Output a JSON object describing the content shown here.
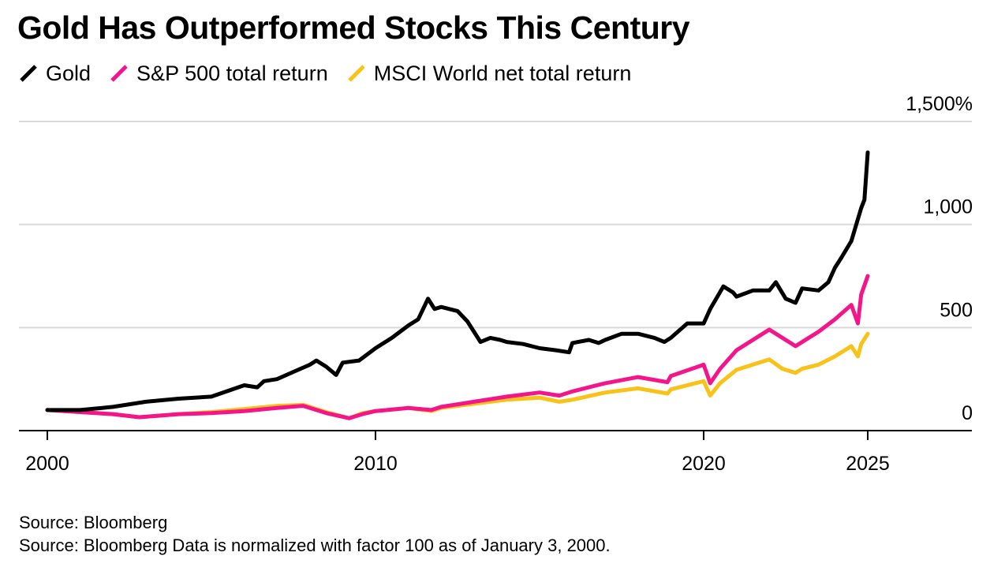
{
  "chart_data": {
    "type": "line",
    "title": "Gold Has Outperformed Stocks This Century",
    "xlabel": "",
    "ylabel": "",
    "x_ticks": [
      "2000",
      "2010",
      "2020",
      "2025"
    ],
    "y_ticks": [
      "0",
      "500",
      "1,000",
      "1,500%"
    ],
    "xlim": [
      2000,
      2028.3
    ],
    "ylim": [
      0,
      1500
    ],
    "grid": true,
    "legend_position": "top-left",
    "series": [
      {
        "name": "Gold",
        "color": "#000000",
        "x": [
          2000.0,
          2001.0,
          2002.0,
          2003.0,
          2004.0,
          2005.0,
          2006.0,
          2006.4,
          2006.6,
          2007.0,
          2007.5,
          2008.0,
          2008.2,
          2008.5,
          2008.8,
          2009.0,
          2009.5,
          2010.0,
          2010.5,
          2011.0,
          2011.3,
          2011.6,
          2011.8,
          2012.0,
          2012.5,
          2012.8,
          2013.2,
          2013.5,
          2013.8,
          2014.0,
          2014.5,
          2015.0,
          2015.5,
          2015.9,
          2016.0,
          2016.5,
          2016.8,
          2017.0,
          2017.5,
          2018.0,
          2018.5,
          2018.8,
          2019.0,
          2019.5,
          2020.0,
          2020.2,
          2020.6,
          2020.9,
          2021.0,
          2021.5,
          2022.0,
          2022.2,
          2022.5,
          2022.8,
          2023.0,
          2023.5,
          2023.8,
          2024.0,
          2024.2,
          2024.5,
          2024.8,
          2024.9,
          2025.0
        ],
        "values": [
          100,
          100,
          115,
          140,
          155,
          165,
          220,
          210,
          240,
          250,
          285,
          320,
          340,
          310,
          270,
          330,
          340,
          400,
          450,
          510,
          540,
          640,
          590,
          600,
          580,
          530,
          430,
          450,
          440,
          430,
          420,
          400,
          390,
          380,
          425,
          440,
          425,
          440,
          470,
          470,
          450,
          430,
          450,
          520,
          520,
          590,
          700,
          670,
          650,
          680,
          680,
          720,
          640,
          620,
          690,
          680,
          720,
          790,
          840,
          920,
          1080,
          1120,
          1350
        ]
      },
      {
        "name": "S&P 500 total return",
        "color": "#F5158B",
        "x": [
          2000.0,
          2001.0,
          2002.0,
          2002.8,
          2004.0,
          2005.0,
          2006.0,
          2007.0,
          2007.8,
          2008.5,
          2009.2,
          2009.6,
          2010.0,
          2011.0,
          2011.7,
          2012.0,
          2013.0,
          2014.0,
          2015.0,
          2015.6,
          2016.0,
          2017.0,
          2018.0,
          2018.9,
          2019.0,
          2020.0,
          2020.2,
          2020.5,
          2021.0,
          2022.0,
          2022.4,
          2022.8,
          2023.0,
          2023.5,
          2024.0,
          2024.5,
          2024.7,
          2024.8,
          2025.0
        ],
        "values": [
          100,
          90,
          80,
          65,
          80,
          85,
          95,
          110,
          120,
          85,
          60,
          80,
          95,
          110,
          100,
          115,
          140,
          165,
          185,
          170,
          190,
          230,
          260,
          235,
          265,
          320,
          230,
          300,
          390,
          490,
          450,
          410,
          430,
          480,
          540,
          610,
          520,
          660,
          750
        ]
      },
      {
        "name": "MSCI World net total return",
        "color": "#F9C219",
        "x": [
          2000.0,
          2001.0,
          2002.0,
          2002.8,
          2004.0,
          2005.0,
          2006.0,
          2007.0,
          2007.8,
          2008.5,
          2009.2,
          2009.6,
          2010.0,
          2011.0,
          2011.7,
          2012.0,
          2013.0,
          2014.0,
          2015.0,
          2015.6,
          2016.0,
          2017.0,
          2018.0,
          2018.9,
          2019.0,
          2020.0,
          2020.2,
          2020.5,
          2021.0,
          2022.0,
          2022.4,
          2022.8,
          2023.0,
          2023.5,
          2024.0,
          2024.5,
          2024.7,
          2024.8,
          2025.0
        ],
        "values": [
          100,
          90,
          80,
          65,
          80,
          90,
          105,
          120,
          125,
          90,
          60,
          85,
          95,
          110,
          95,
          110,
          130,
          150,
          160,
          140,
          150,
          185,
          205,
          180,
          200,
          240,
          170,
          230,
          295,
          345,
          300,
          280,
          300,
          320,
          360,
          410,
          360,
          420,
          470
        ]
      }
    ]
  },
  "footer": {
    "source_line_1": "Source: Bloomberg",
    "source_line_2": "Source: Bloomberg Data is normalized with factor 100 as of January 3, 2000."
  }
}
